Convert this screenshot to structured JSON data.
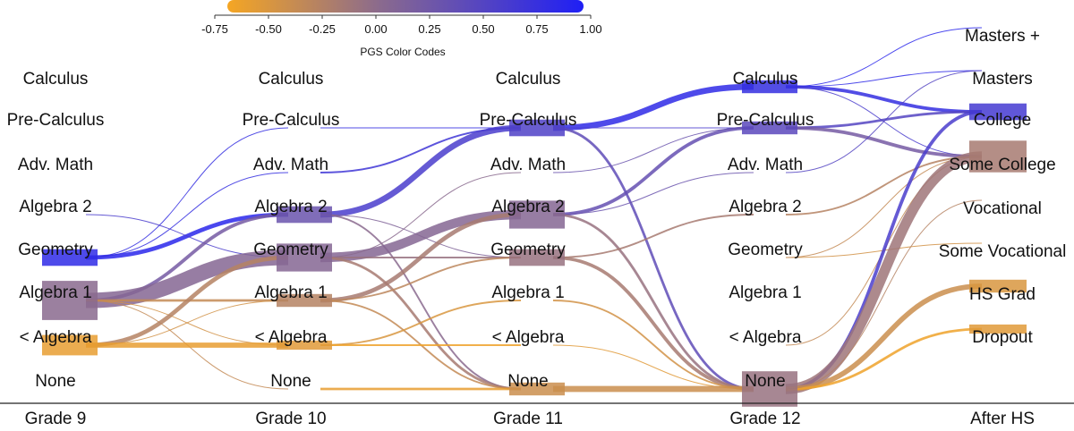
{
  "chart_data": {
    "type": "sankey",
    "legend": {
      "title": "PGS Color Codes",
      "ticks": [
        "-0.75",
        "-0.50",
        "-0.25",
        "0.00",
        "0.25",
        "0.50",
        "0.75",
        "1.00"
      ],
      "range": [
        -0.75,
        1.0
      ],
      "colors": {
        "low": "#f5a623",
        "mid": "#8a6a8e",
        "high": "#1f1ff5"
      }
    },
    "stages": [
      "Grade 9",
      "Grade 10",
      "Grade 11",
      "Grade 12",
      "After HS"
    ],
    "course_levels": [
      "Calculus",
      "Pre-Calculus",
      "Adv. Math",
      "Algebra 2",
      "Geometry",
      "Algebra 1",
      "< Algebra",
      "None"
    ],
    "outcome_levels": [
      "Masters +",
      "Masters",
      "College",
      "Some College",
      "Vocational",
      "Some Vocational",
      "HS Grad",
      "Dropout"
    ],
    "node_sizes": [
      {
        "stage": 0,
        "node": "Geometry",
        "size": 3,
        "pgs": 0.85
      },
      {
        "stage": 0,
        "node": "Algebra 1",
        "size": 9,
        "pgs": 0.0
      },
      {
        "stage": 0,
        "node": "< Algebra",
        "size": 4,
        "pgs": -0.65
      },
      {
        "stage": 1,
        "node": "Algebra 2",
        "size": 3,
        "pgs": 0.3
      },
      {
        "stage": 1,
        "node": "Geometry",
        "size": 6,
        "pgs": 0.05
      },
      {
        "stage": 1,
        "node": "Algebra 1",
        "size": 2,
        "pgs": -0.3
      },
      {
        "stage": 1,
        "node": "< Algebra",
        "size": 1,
        "pgs": -0.6
      },
      {
        "stage": 2,
        "node": "Pre-Calculus",
        "size": 3,
        "pgs": 0.55
      },
      {
        "stage": 2,
        "node": "Algebra 2",
        "size": 6,
        "pgs": 0.05
      },
      {
        "stage": 2,
        "node": "Geometry",
        "size": 3,
        "pgs": -0.1
      },
      {
        "stage": 2,
        "node": "None",
        "size": 2,
        "pgs": -0.45
      },
      {
        "stage": 3,
        "node": "Calculus",
        "size": 2,
        "pgs": 0.8
      },
      {
        "stage": 3,
        "node": "Pre-Calculus",
        "size": 2,
        "pgs": 0.45
      },
      {
        "stage": 3,
        "node": "None",
        "size": 8,
        "pgs": -0.1
      },
      {
        "stage": 4,
        "node": "College",
        "size": 3,
        "pgs": 0.65
      },
      {
        "stage": 4,
        "node": "Some College",
        "size": 7,
        "pgs": -0.2
      },
      {
        "stage": 4,
        "node": "HS Grad",
        "size": 2,
        "pgs": -0.55
      },
      {
        "stage": 4,
        "node": "Dropout",
        "size": 1,
        "pgs": -0.6
      }
    ],
    "flows": [
      {
        "stage": 0,
        "from": "Geometry",
        "to": "Algebra 2",
        "weight": 5,
        "pgs": 0.9
      },
      {
        "stage": 0,
        "from": "Geometry",
        "to": "Pre-Calculus",
        "weight": 1,
        "pgs": 0.8
      },
      {
        "stage": 0,
        "from": "Geometry",
        "to": "Adv. Math",
        "weight": 1,
        "pgs": 0.8
      },
      {
        "stage": 0,
        "from": "Algebra 2",
        "to": "Geometry",
        "weight": 1,
        "pgs": 0.6
      },
      {
        "stage": 0,
        "from": "Algebra 1",
        "to": "Algebra 2",
        "weight": 4,
        "pgs": 0.2
      },
      {
        "stage": 0,
        "from": "Algebra 1",
        "to": "Geometry",
        "weight": 18,
        "pgs": 0.05
      },
      {
        "stage": 0,
        "from": "Algebra 1",
        "to": "Algebra 1",
        "weight": 3,
        "pgs": -0.4
      },
      {
        "stage": 0,
        "from": "Algebra 1",
        "to": "< Algebra",
        "weight": 1,
        "pgs": -0.5
      },
      {
        "stage": 0,
        "from": "Algebra 1",
        "to": "None",
        "weight": 1,
        "pgs": -0.4
      },
      {
        "stage": 0,
        "from": "< Algebra",
        "to": "Geometry",
        "weight": 5,
        "pgs": -0.3
      },
      {
        "stage": 0,
        "from": "< Algebra",
        "to": "Algebra 1",
        "weight": 1,
        "pgs": -0.5
      },
      {
        "stage": 0,
        "from": "< Algebra",
        "to": "< Algebra",
        "weight": 6,
        "pgs": -0.65
      },
      {
        "stage": 1,
        "from": "Pre-Calculus",
        "to": "Pre-Calculus",
        "weight": 1,
        "pgs": 0.8
      },
      {
        "stage": 1,
        "from": "Adv. Math",
        "to": "Pre-Calculus",
        "weight": 2,
        "pgs": 0.7
      },
      {
        "stage": 1,
        "from": "Algebra 2",
        "to": "Pre-Calculus",
        "weight": 7,
        "pgs": 0.6
      },
      {
        "stage": 1,
        "from": "Algebra 2",
        "to": "Geometry",
        "weight": 1,
        "pgs": 0.1
      },
      {
        "stage": 1,
        "from": "Algebra 2",
        "to": "None",
        "weight": 2,
        "pgs": 0.0
      },
      {
        "stage": 1,
        "from": "Geometry",
        "to": "Algebra 2",
        "weight": 11,
        "pgs": 0.05
      },
      {
        "stage": 1,
        "from": "Geometry",
        "to": "Geometry",
        "weight": 2,
        "pgs": -0.1
      },
      {
        "stage": 1,
        "from": "Geometry",
        "to": "Adv. Math",
        "weight": 1,
        "pgs": 0.0
      },
      {
        "stage": 1,
        "from": "Geometry",
        "to": "None",
        "weight": 3,
        "pgs": -0.2
      },
      {
        "stage": 1,
        "from": "Algebra 1",
        "to": "Algebra 2",
        "weight": 5,
        "pgs": -0.2
      },
      {
        "stage": 1,
        "from": "Algebra 1",
        "to": "Geometry",
        "weight": 2,
        "pgs": -0.35
      },
      {
        "stage": 1,
        "from": "Algebra 1",
        "to": "None",
        "weight": 2,
        "pgs": -0.4
      },
      {
        "stage": 1,
        "from": "< Algebra",
        "to": "Algebra 1",
        "weight": 2,
        "pgs": -0.55
      },
      {
        "stage": 1,
        "from": "< Algebra",
        "to": "< Algebra",
        "weight": 2,
        "pgs": -0.7
      },
      {
        "stage": 1,
        "from": "None",
        "to": "None",
        "weight": 3,
        "pgs": -0.65
      },
      {
        "stage": 2,
        "from": "Pre-Calculus",
        "to": "Calculus",
        "weight": 7,
        "pgs": 0.85
      },
      {
        "stage": 2,
        "from": "Pre-Calculus",
        "to": "Pre-Calculus",
        "weight": 1,
        "pgs": 0.6
      },
      {
        "stage": 2,
        "from": "Pre-Calculus",
        "to": "None",
        "weight": 3,
        "pgs": 0.4
      },
      {
        "stage": 2,
        "from": "Adv. Math",
        "to": "Pre-Calculus",
        "weight": 1,
        "pgs": 0.3
      },
      {
        "stage": 2,
        "from": "Algebra 2",
        "to": "Pre-Calculus",
        "weight": 4,
        "pgs": 0.35
      },
      {
        "stage": 2,
        "from": "Algebra 2",
        "to": "Adv. Math",
        "weight": 1,
        "pgs": 0.3
      },
      {
        "stage": 2,
        "from": "Algebra 2",
        "to": "None",
        "weight": 3,
        "pgs": -0.1
      },
      {
        "stage": 2,
        "from": "Geometry",
        "to": "Algebra 2",
        "weight": 2,
        "pgs": -0.2
      },
      {
        "stage": 2,
        "from": "Geometry",
        "to": "None",
        "weight": 4,
        "pgs": -0.2
      },
      {
        "stage": 2,
        "from": "Algebra 1",
        "to": "None",
        "weight": 2,
        "pgs": -0.5
      },
      {
        "stage": 2,
        "from": "< Algebra",
        "to": "None",
        "weight": 1,
        "pgs": -0.6
      },
      {
        "stage": 2,
        "from": "None",
        "to": "None",
        "weight": 7,
        "pgs": -0.45
      },
      {
        "stage": 3,
        "from": "Calculus",
        "to": "Masters +",
        "weight": 1,
        "pgs": 0.9
      },
      {
        "stage": 3,
        "from": "Calculus",
        "to": "Masters",
        "weight": 1,
        "pgs": 0.85
      },
      {
        "stage": 3,
        "from": "Calculus",
        "to": "College",
        "weight": 4,
        "pgs": 0.8
      },
      {
        "stage": 3,
        "from": "Calculus",
        "to": "Some College",
        "weight": 1,
        "pgs": 0.6
      },
      {
        "stage": 3,
        "from": "Pre-Calculus",
        "to": "College",
        "weight": 3,
        "pgs": 0.5
      },
      {
        "stage": 3,
        "from": "Pre-Calculus",
        "to": "Some College",
        "weight": 4,
        "pgs": 0.2
      },
      {
        "stage": 3,
        "from": "Adv. Math",
        "to": "Masters",
        "weight": 1,
        "pgs": 0.5
      },
      {
        "stage": 3,
        "from": "Algebra 2",
        "to": "Some College",
        "weight": 2,
        "pgs": -0.3
      },
      {
        "stage": 3,
        "from": "Geometry",
        "to": "Some Vocational",
        "weight": 1,
        "pgs": -0.5
      },
      {
        "stage": 3,
        "from": "Geometry",
        "to": "Some College",
        "weight": 1,
        "pgs": -0.4
      },
      {
        "stage": 3,
        "from": "< Algebra",
        "to": "Some College",
        "weight": 1,
        "pgs": -0.4
      },
      {
        "stage": 3,
        "from": "None",
        "to": "College",
        "weight": 4,
        "pgs": 0.6
      },
      {
        "stage": 3,
        "from": "None",
        "to": "Some College",
        "weight": 12,
        "pgs": -0.15
      },
      {
        "stage": 3,
        "from": "None",
        "to": "HS Grad",
        "weight": 6,
        "pgs": -0.45
      },
      {
        "stage": 3,
        "from": "None",
        "to": "Dropout",
        "weight": 3,
        "pgs": -0.7
      },
      {
        "stage": 3,
        "from": "None",
        "to": "Vocational",
        "weight": 1,
        "pgs": -0.3
      }
    ]
  }
}
